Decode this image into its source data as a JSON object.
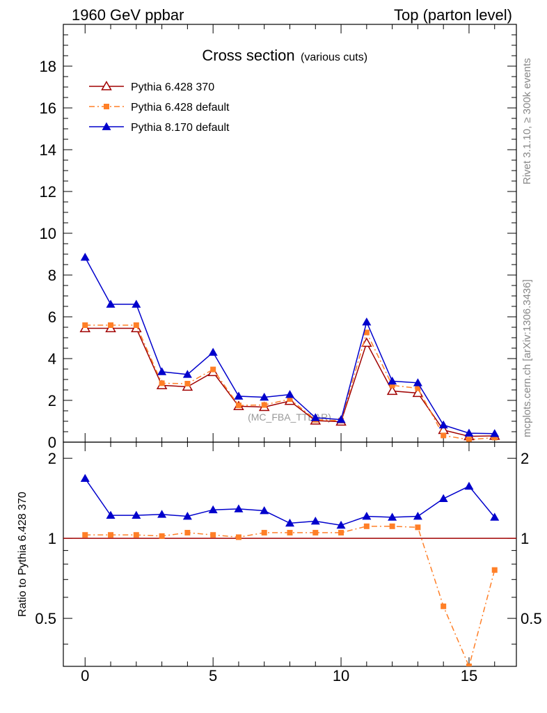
{
  "header": {
    "left": "1960 GeV ppbar",
    "right": "Top (parton level)"
  },
  "side_labels": {
    "rivet": "Rivet 3.1.10, ≥ 300k events",
    "mcplots": "mcplots.cern.ch [arXiv:1306.3436]"
  },
  "chart_data": [
    {
      "type": "line",
      "title": "Cross section",
      "subtitle": "(various cuts)",
      "annotation": "(MC_FBA_TTBAR)",
      "xlim": [
        -0.85,
        16.85
      ],
      "ylim": [
        0,
        20
      ],
      "yticks": [
        0,
        2,
        4,
        6,
        8,
        10,
        12,
        14,
        16,
        18
      ],
      "ytick_labels": [
        "0",
        "2",
        "4",
        "6",
        "8",
        "10",
        "12",
        "14",
        "16",
        "18"
      ],
      "legend_position": "top-left",
      "x": [
        0,
        1,
        2,
        3,
        4,
        5,
        6,
        7,
        8,
        9,
        10,
        11,
        12,
        13,
        14,
        15,
        16
      ],
      "series": [
        {
          "name": "Pythia 6.428 370",
          "color": "#a00000",
          "marker": "open-triangle",
          "line": "solid",
          "values": [
            5.45,
            5.45,
            5.45,
            2.72,
            2.65,
            3.35,
            1.72,
            1.68,
            1.97,
            1.03,
            0.98,
            4.75,
            2.45,
            2.35,
            0.58,
            0.28,
            0.3
          ]
        },
        {
          "name": "Pythia 6.428 default",
          "color": "#ff7f27",
          "marker": "filled-square",
          "line": "dashdot",
          "values": [
            5.6,
            5.6,
            5.6,
            2.82,
            2.8,
            3.48,
            1.76,
            1.78,
            2.06,
            1.07,
            1.03,
            5.25,
            2.72,
            2.58,
            0.32,
            0.12,
            0.22
          ]
        },
        {
          "name": "Pythia 8.170 default",
          "color": "#0000cc",
          "marker": "filled-triangle",
          "line": "solid",
          "values": [
            8.85,
            6.6,
            6.6,
            3.37,
            3.24,
            4.3,
            2.2,
            2.15,
            2.28,
            1.17,
            1.08,
            5.75,
            2.92,
            2.84,
            0.82,
            0.43,
            0.41
          ]
        }
      ]
    },
    {
      "type": "line",
      "ylabel": "Ratio to Pythia 6.428 370",
      "xlim": [
        -0.85,
        16.85
      ],
      "ylim": [
        0.33,
        2.3
      ],
      "yticks": [
        0.5,
        1,
        2
      ],
      "ytick_labels": [
        "0.5",
        "1",
        "2"
      ],
      "xticks": [
        0,
        5,
        10,
        15
      ],
      "xtick_labels": [
        "0",
        "5",
        "10",
        "15"
      ],
      "reference_line": 1,
      "x": [
        0,
        1,
        2,
        3,
        4,
        5,
        6,
        7,
        8,
        9,
        10,
        11,
        12,
        13,
        14,
        15,
        16
      ],
      "series": [
        {
          "name": "Pythia 6.428 default",
          "color": "#ff7f27",
          "marker": "filled-square",
          "line": "dashdot",
          "values": [
            1.03,
            1.03,
            1.03,
            1.02,
            1.05,
            1.03,
            1.01,
            1.05,
            1.05,
            1.05,
            1.05,
            1.11,
            1.11,
            1.1,
            0.555,
            0.33,
            0.76
          ]
        },
        {
          "name": "Pythia 8.170 default",
          "color": "#0000cc",
          "marker": "filled-triangle",
          "line": "solid",
          "values": [
            1.68,
            1.22,
            1.22,
            1.23,
            1.21,
            1.28,
            1.29,
            1.27,
            1.14,
            1.16,
            1.12,
            1.21,
            1.2,
            1.21,
            1.41,
            1.57,
            1.2
          ]
        }
      ]
    }
  ]
}
